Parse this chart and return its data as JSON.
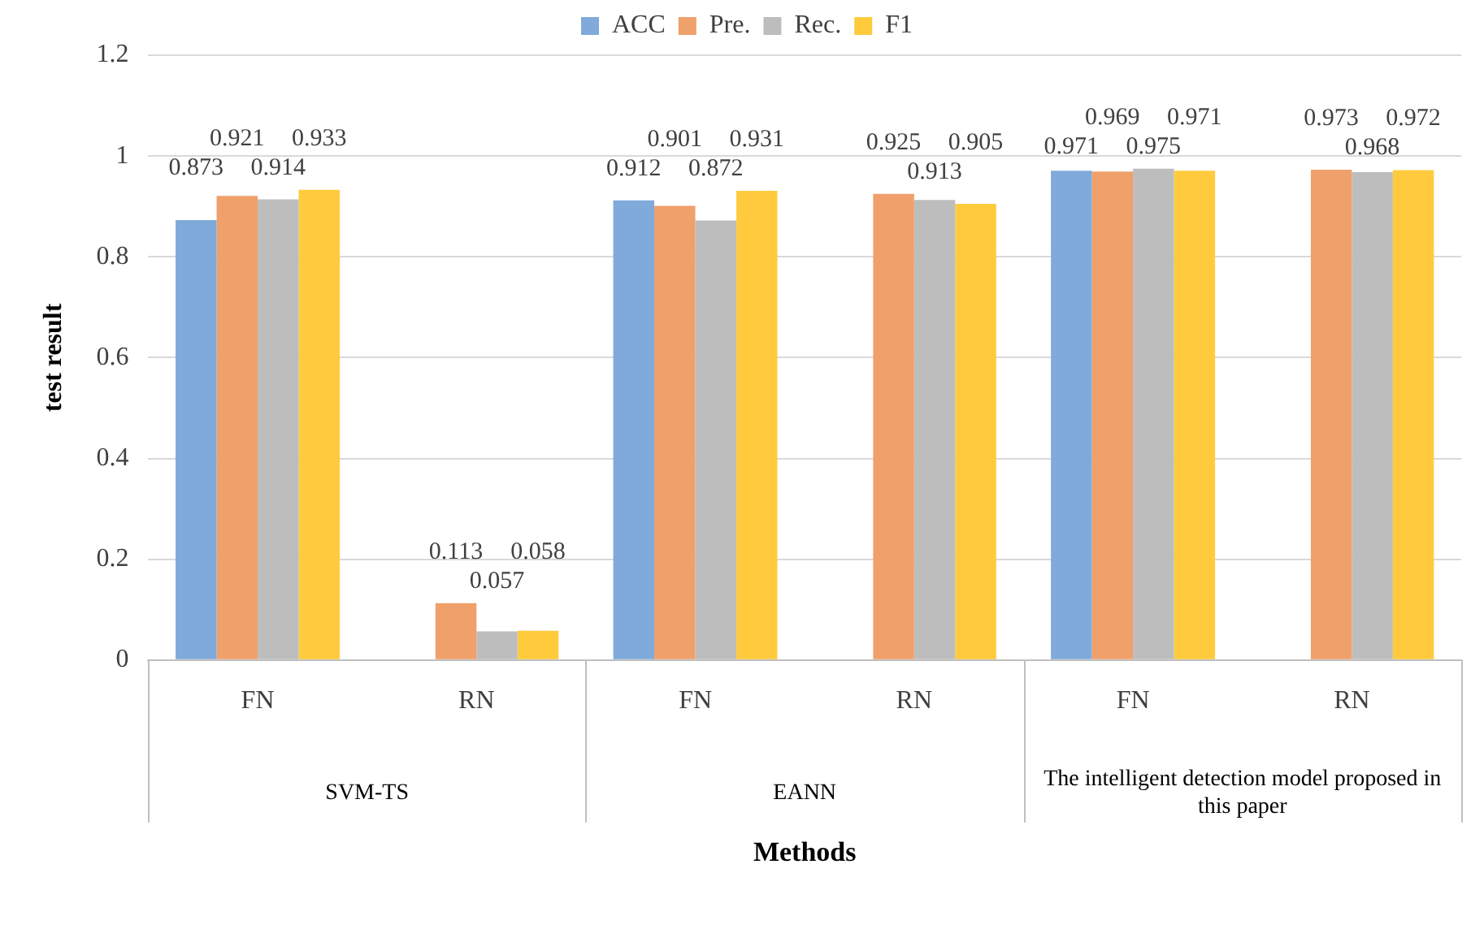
{
  "chart_data": {
    "type": "bar",
    "xlabel": "Methods",
    "ylabel": "test result",
    "categories": [
      "FN",
      "RN",
      "FN",
      "RN",
      "FN",
      "RN"
    ],
    "series": [
      {
        "name": "ACC",
        "color": "#7faad9",
        "values": [
          0.873,
          null,
          0.912,
          null,
          0.971,
          null
        ]
      },
      {
        "name": "Pre.",
        "color": "#f0a06a",
        "values": [
          0.921,
          0.113,
          0.901,
          0.925,
          0.969,
          0.973
        ]
      },
      {
        "name": "Rec.",
        "color": "#bdbdbd",
        "values": [
          0.914,
          0.057,
          0.872,
          0.913,
          0.975,
          0.968
        ]
      },
      {
        "name": "F1",
        "color": "#ffcb3d",
        "values": [
          0.933,
          0.058,
          0.931,
          0.905,
          0.971,
          0.972
        ]
      }
    ],
    "annotations": [
      "SVM-TS",
      "EANN",
      "The intelligent detection model proposed in this paper"
    ],
    "ylim": [
      0,
      1.2
    ],
    "yticks": [
      0,
      0.2,
      0.4,
      0.6,
      0.8,
      1,
      1.2
    ],
    "grid": "y",
    "legend": "top",
    "data_labels": true
  }
}
